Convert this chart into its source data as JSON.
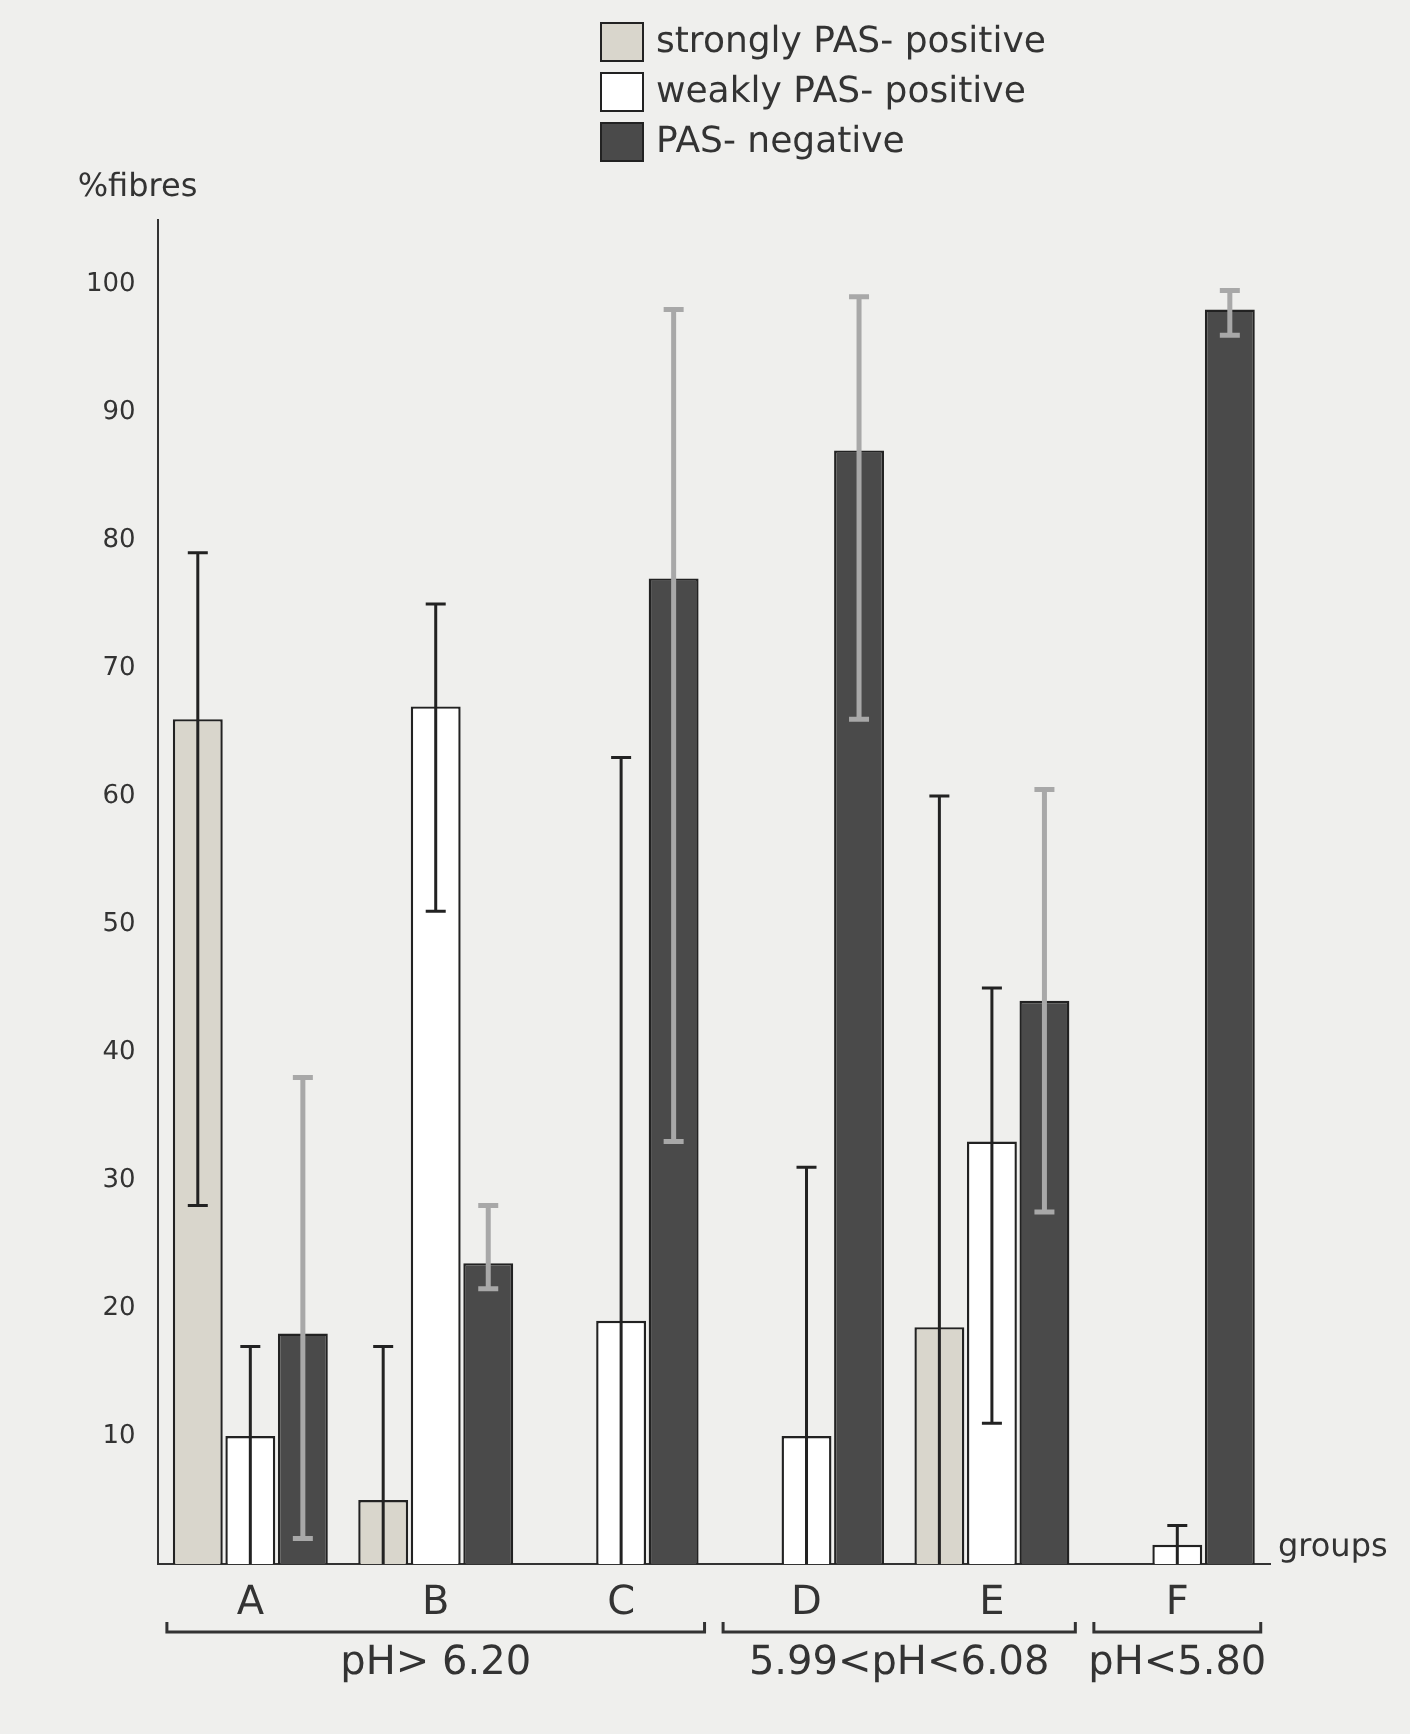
{
  "chart_data": {
    "type": "bar",
    "xlabel": "groups",
    "ylabel": "%fibres",
    "categories": [
      "A",
      "B",
      "C",
      "D",
      "E",
      "F"
    ],
    "series": [
      {
        "name": "strongly PAS- positive",
        "color": "#d9d6cc",
        "values": [
          66,
          5,
          null,
          null,
          18.5,
          null
        ],
        "errors": [
          [
            28,
            79
          ],
          [
            0,
            17
          ],
          null,
          null,
          [
            0,
            60
          ],
          null
        ]
      },
      {
        "name": "weakly PAS- positive",
        "color": "#ffffff",
        "values": [
          10,
          67,
          19,
          10,
          33,
          1.5
        ],
        "errors": [
          [
            0,
            17
          ],
          [
            51,
            75
          ],
          [
            0,
            63
          ],
          [
            0,
            31
          ],
          [
            11,
            45
          ],
          [
            0,
            3
          ]
        ]
      },
      {
        "name": "PAS- negative",
        "color": "#4a4a4a",
        "values": [
          18,
          23.5,
          77,
          87,
          44,
          98
        ],
        "errors": [
          [
            2,
            38
          ],
          [
            21.5,
            28
          ],
          [
            33,
            98
          ],
          [
            66,
            99
          ],
          [
            27.5,
            60.5
          ],
          [
            96,
            99.5
          ]
        ]
      }
    ],
    "ylim": [
      0,
      105
    ],
    "yticks": [
      10,
      20,
      30,
      40,
      50,
      60,
      70,
      80,
      90,
      100
    ],
    "grid": false,
    "legend": "top right",
    "annotations": [
      "pH> 6.20",
      "5.99<pH<6.08",
      "pH<5.80"
    ]
  }
}
